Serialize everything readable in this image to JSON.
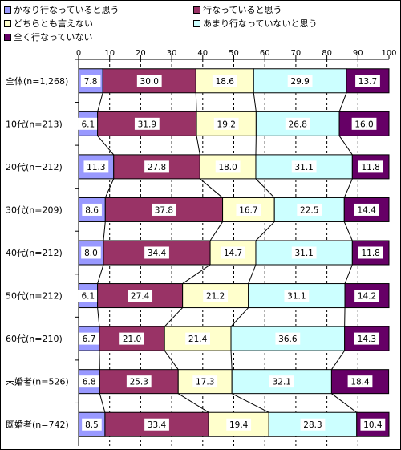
{
  "chart_data": {
    "type": "bar",
    "stacked": true,
    "orientation": "horizontal",
    "xlim": [
      0,
      100
    ],
    "ticks": [
      0,
      10,
      20,
      30,
      40,
      50,
      60,
      70,
      80,
      90,
      100
    ],
    "grid": true,
    "legend_position": "top",
    "categories": [
      "全体(n=1,268)",
      "10代(n=213)",
      "20代(n=212)",
      "30代(n=209)",
      "40代(n=212)",
      "50代(n=212)",
      "60代(n=210)",
      "未婚者(n=526)",
      "既婚者(n=742)"
    ],
    "series": [
      {
        "name": "かなり行なっていると思う",
        "color": "#9999ff",
        "values": [
          7.8,
          6.1,
          11.3,
          8.6,
          8.0,
          6.1,
          6.7,
          6.8,
          8.5
        ]
      },
      {
        "name": "行なっていると思う",
        "color": "#993366",
        "values": [
          30.0,
          31.9,
          27.8,
          37.8,
          34.4,
          27.4,
          21.0,
          25.3,
          33.4
        ]
      },
      {
        "name": "どちらとも言えない",
        "color": "#ffffcc",
        "values": [
          18.6,
          19.2,
          18.0,
          16.7,
          14.7,
          21.2,
          21.4,
          17.3,
          19.4
        ]
      },
      {
        "name": "あまり行なっていないと思う",
        "color": "#ccffff",
        "values": [
          29.9,
          26.8,
          31.1,
          22.5,
          31.1,
          31.1,
          36.6,
          32.1,
          28.3
        ]
      },
      {
        "name": "全く行なっていない",
        "color": "#660066",
        "values": [
          13.7,
          16.0,
          11.8,
          14.4,
          11.8,
          14.2,
          14.3,
          18.4,
          10.4
        ]
      }
    ]
  }
}
